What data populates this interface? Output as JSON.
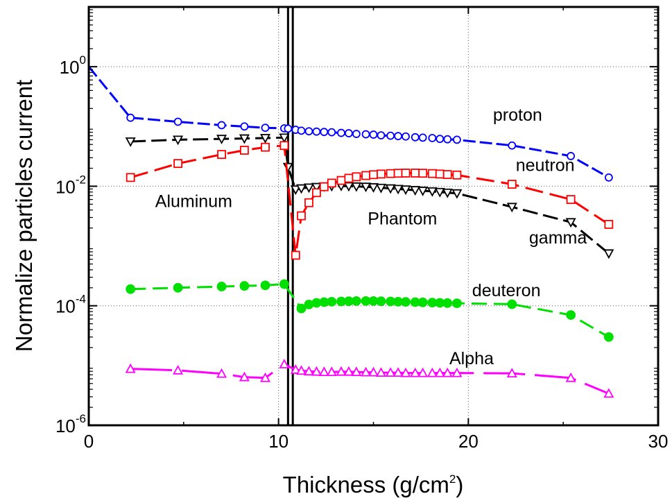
{
  "chart_data": {
    "type": "line",
    "title": "",
    "xlabel": {
      "main": "Thickness (g/cm",
      "sup": "2",
      "close": ")"
    },
    "ylabel": "Normalize particles current",
    "xlim": [
      0,
      30
    ],
    "ylim": [
      1e-06,
      10
    ],
    "yscale": "log",
    "grid": true,
    "x_ticks": [
      {
        "value": 0,
        "label": "0"
      },
      {
        "value": 10,
        "label": "10"
      },
      {
        "value": 20,
        "label": "20"
      },
      {
        "value": 30,
        "label": "30"
      }
    ],
    "y_ticks": [
      {
        "value": 1e-06,
        "base": "10",
        "exp": "-6"
      },
      {
        "value": 0.0001,
        "base": "10",
        "exp": "-4"
      },
      {
        "value": 0.01,
        "base": "10",
        "exp": "-2"
      },
      {
        "value": 1,
        "base": "10",
        "exp": "0"
      }
    ],
    "boundaries": [
      10.5,
      10.75
    ],
    "annotations": [
      {
        "text": "Aluminum",
        "x": 3.5,
        "y": 0.0045
      },
      {
        "text": "Phantom",
        "x": 14.7,
        "y": 0.0023
      },
      {
        "text": "proton",
        "x": 21.3,
        "y": 0.125
      },
      {
        "text": "neutron",
        "x": 22.5,
        "y": 0.018
      },
      {
        "text": "gamma",
        "x": 23.2,
        "y": 0.0011
      },
      {
        "text": "deuteron",
        "x": 20.2,
        "y": 0.000145
      },
      {
        "text": "Alpha",
        "x": 19.0,
        "y": 1.05e-05
      }
    ],
    "series": [
      {
        "color": "#0000ff",
        "marker": "circle-open",
        "dash": "18 6",
        "x": [
          0,
          2.2,
          4.7,
          7.0,
          8.2,
          9.3,
          10.3,
          10.5,
          10.9,
          11.2,
          11.6,
          12.0,
          12.4,
          12.8,
          13.3,
          13.7,
          14.1,
          14.6,
          15.0,
          15.4,
          15.9,
          16.3,
          16.7,
          17.2,
          17.6,
          18.1,
          18.5,
          18.9,
          19.4,
          22.3,
          25.4,
          27.4
        ],
        "values": [
          1.0,
          0.14,
          0.12,
          0.105,
          0.1,
          0.095,
          0.093,
          0.092,
          0.088,
          0.085,
          0.083,
          0.082,
          0.081,
          0.08,
          0.078,
          0.077,
          0.075,
          0.074,
          0.073,
          0.071,
          0.07,
          0.069,
          0.068,
          0.066,
          0.065,
          0.064,
          0.062,
          0.061,
          0.06,
          0.048,
          0.032,
          0.014
        ]
      },
      {
        "color": "#000000",
        "marker": "triangle-down-open",
        "dash": "22 8",
        "x": [
          2.2,
          4.7,
          7.0,
          8.2,
          9.3,
          10.3,
          10.5,
          10.9,
          11.2,
          11.6,
          12.0,
          12.4,
          12.8,
          13.3,
          13.7,
          14.1,
          14.6,
          15.0,
          15.4,
          15.9,
          16.3,
          16.7,
          17.2,
          17.6,
          18.1,
          18.5,
          18.9,
          19.4,
          22.3,
          25.4,
          27.4
        ],
        "values": [
          0.056,
          0.06,
          0.062,
          0.063,
          0.064,
          0.065,
          0.021,
          0.0088,
          0.0092,
          0.0095,
          0.0097,
          0.0099,
          0.01,
          0.0101,
          0.01,
          0.0099,
          0.0098,
          0.0096,
          0.0094,
          0.0092,
          0.009,
          0.0088,
          0.0086,
          0.0084,
          0.0082,
          0.008,
          0.0078,
          0.0076,
          0.0045,
          0.0025,
          0.00075
        ]
      },
      {
        "color": "#ff0000",
        "marker": "square-open",
        "dash": "26 10",
        "x": [
          2.2,
          4.7,
          7.0,
          8.2,
          9.3,
          10.3,
          10.9,
          11.2,
          11.6,
          12.0,
          12.4,
          12.8,
          13.3,
          13.7,
          14.1,
          14.6,
          15.0,
          15.4,
          15.9,
          16.3,
          16.7,
          17.2,
          17.6,
          18.1,
          18.5,
          18.9,
          19.4,
          22.3,
          25.4,
          27.4
        ],
        "values": [
          0.014,
          0.024,
          0.034,
          0.04,
          0.045,
          0.048,
          0.0007,
          0.0032,
          0.0053,
          0.0078,
          0.0098,
          0.0113,
          0.0125,
          0.0136,
          0.0144,
          0.0151,
          0.0156,
          0.016,
          0.0163,
          0.0165,
          0.0166,
          0.0166,
          0.0165,
          0.0163,
          0.016,
          0.0157,
          0.0154,
          0.0108,
          0.006,
          0.0023
        ]
      },
      {
        "color": "#00e000",
        "marker": "circle-filled",
        "dash": "22 10",
        "x": [
          2.2,
          4.7,
          7.0,
          8.2,
          9.3,
          10.3,
          11.2,
          11.6,
          12.0,
          12.4,
          12.8,
          13.3,
          13.7,
          14.1,
          14.6,
          15.0,
          15.4,
          15.9,
          16.3,
          16.7,
          17.2,
          17.6,
          18.1,
          18.5,
          18.9,
          19.4,
          22.3,
          25.4,
          27.4
        ],
        "values": [
          0.00019,
          0.0002,
          0.00021,
          0.000215,
          0.00022,
          0.00023,
          9e-05,
          0.000105,
          0.000112,
          0.000115,
          0.000117,
          0.000118,
          0.000119,
          0.00012,
          0.00012,
          0.00012,
          0.000119,
          0.000118,
          0.000117,
          0.000116,
          0.000115,
          0.000114,
          0.000113,
          0.000112,
          0.000111,
          0.00011,
          0.000106,
          7e-05,
          3e-05
        ]
      },
      {
        "color": "#ff00ff",
        "marker": "triangle-up-open",
        "dash": "60 14",
        "x": [
          2.2,
          4.7,
          7.0,
          8.2,
          9.3,
          10.3,
          10.9,
          11.2,
          11.6,
          12.0,
          12.4,
          12.8,
          13.3,
          13.7,
          14.1,
          14.6,
          15.0,
          15.4,
          15.9,
          16.3,
          16.7,
          17.2,
          17.6,
          18.1,
          18.5,
          18.9,
          19.4,
          22.3,
          25.4,
          27.4
        ],
        "values": [
          8.8e-06,
          8.3e-06,
          7.3e-06,
          6.4e-06,
          6.2e-06,
          1.05e-05,
          8.5e-06,
          8.2e-06,
          8e-06,
          7.9e-06,
          7.8e-06,
          7.8e-06,
          7.9e-06,
          7.9e-06,
          7.8e-06,
          7.7e-06,
          7.7e-06,
          7.6e-06,
          7.6e-06,
          7.6e-06,
          7.5e-06,
          7.5e-06,
          7.5e-06,
          7.5e-06,
          7.5e-06,
          7.5e-06,
          7.5e-06,
          7.4e-06,
          6.2e-06,
          3.4e-06
        ]
      }
    ]
  }
}
